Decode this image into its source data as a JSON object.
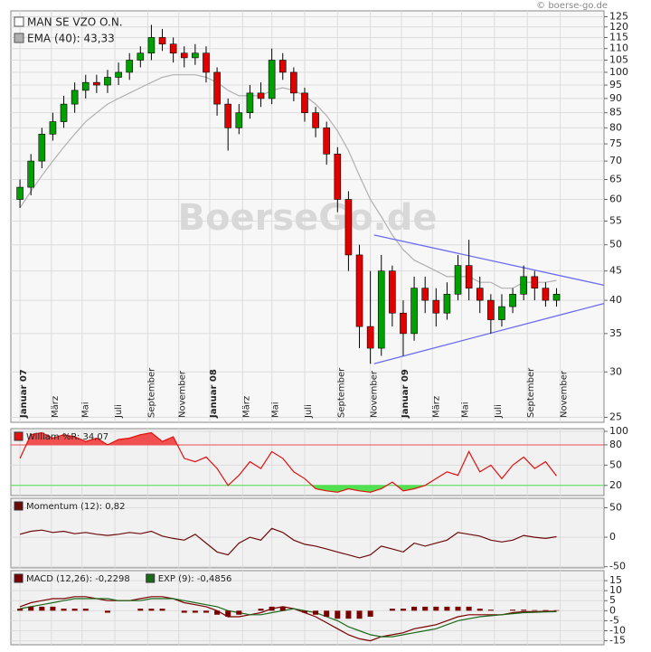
{
  "chart_data": [
    {
      "type": "candlestick",
      "name": "MAN SE VZO O.N.",
      "watermark": "BoerseGo.de",
      "copyright": "© boerse-go.de",
      "log": true,
      "up_color": "#00a000",
      "down_color": "#e00000",
      "legend_color": "#ffffff",
      "x": [
        0,
        3,
        6,
        9,
        12,
        15,
        18,
        21,
        24,
        27,
        30,
        33,
        36,
        39,
        42,
        45,
        48,
        51,
        54,
        57,
        60,
        63,
        66,
        69,
        72,
        75,
        78,
        81,
        84,
        87,
        90,
        93,
        96,
        99,
        102,
        105,
        108,
        111,
        114,
        117,
        120,
        123,
        126,
        129,
        132,
        135,
        138,
        141,
        144,
        147
      ],
      "open": [
        60,
        63,
        70,
        78,
        82,
        88,
        93,
        96,
        95,
        98,
        100,
        105,
        108,
        115,
        112,
        108,
        106,
        108,
        100,
        88,
        80,
        85,
        92,
        90,
        105,
        100,
        92,
        85,
        80,
        72,
        60,
        48,
        36,
        33,
        45,
        38,
        35,
        42,
        40,
        38,
        41,
        46,
        42,
        40,
        37,
        39,
        41,
        44,
        42,
        40
      ],
      "high": [
        65,
        72,
        80,
        85,
        91,
        96,
        99,
        99,
        101,
        104,
        108,
        111,
        121,
        119,
        115,
        111,
        112,
        111,
        102,
        90,
        88,
        95,
        96,
        110,
        108,
        102,
        94,
        87,
        82,
        74,
        62,
        50,
        45,
        48,
        46,
        40,
        44,
        44,
        42,
        43,
        48,
        51,
        44,
        41,
        41,
        42,
        46,
        45,
        43,
        42
      ],
      "low": [
        58,
        61,
        68,
        76,
        80,
        85,
        90,
        92,
        92,
        95,
        97,
        102,
        105,
        109,
        104,
        102,
        103,
        96,
        84,
        73,
        78,
        83,
        87,
        88,
        97,
        89,
        82,
        77,
        69,
        57,
        45,
        33,
        31,
        32,
        36,
        32,
        34,
        38,
        36,
        37,
        40,
        40,
        38,
        35,
        36,
        38,
        40,
        40,
        39,
        39
      ],
      "close": [
        63,
        70,
        78,
        82,
        88,
        93,
        96,
        95,
        98,
        100,
        105,
        108,
        115,
        112,
        108,
        106,
        108,
        100,
        88,
        80,
        85,
        92,
        90,
        105,
        100,
        92,
        85,
        80,
        72,
        60,
        48,
        36,
        33,
        45,
        38,
        35,
        42,
        40,
        38,
        41,
        46,
        42,
        40,
        37,
        39,
        41,
        44,
        42,
        40,
        41
      ],
      "series": [
        {
          "name": "EMA (40): 43,33",
          "color": "#b0b0b0",
          "values": [
            58,
            62,
            66,
            70,
            74,
            78,
            82,
            85,
            88,
            90,
            92,
            94,
            96,
            98,
            99,
            99,
            99,
            98,
            96,
            93,
            91,
            91,
            91,
            93,
            94,
            93,
            91,
            88,
            84,
            79,
            73,
            66,
            60,
            56,
            52,
            49,
            47,
            46,
            45,
            44,
            44,
            44,
            43,
            43,
            42,
            42,
            43,
            43,
            43,
            43.33
          ]
        }
      ],
      "trendlines": [
        {
          "color": "#6b6bef",
          "x": [
            97,
            160
          ],
          "values": [
            52,
            42.5
          ]
        },
        {
          "color": "#6b6bef",
          "x": [
            97,
            160
          ],
          "values": [
            31,
            39.5
          ]
        }
      ],
      "xlim": [
        -2.5,
        160
      ],
      "ylim": [
        24.5,
        128
      ],
      "yticks": [
        25,
        30,
        35,
        40,
        45,
        50,
        55,
        60,
        65,
        70,
        75,
        80,
        85,
        90,
        95,
        100,
        105,
        110,
        115,
        120,
        125
      ],
      "xticks": [
        {
          "value": 0,
          "label": "Januar 07"
        },
        {
          "value": 8.6,
          "label": "März"
        },
        {
          "value": 17,
          "label": "Mai"
        },
        {
          "value": 26,
          "label": "Juli"
        },
        {
          "value": 35,
          "label": "September"
        },
        {
          "value": 43.5,
          "label": "November"
        },
        {
          "value": 52,
          "label": "Januar 08"
        },
        {
          "value": 61,
          "label": "März"
        },
        {
          "value": 69,
          "label": "Mai"
        },
        {
          "value": 78,
          "label": "Juli"
        },
        {
          "value": 87,
          "label": "September"
        },
        {
          "value": 96,
          "label": "November"
        },
        {
          "value": 104.5,
          "label": "Januar 09"
        },
        {
          "value": 113,
          "label": "März"
        },
        {
          "value": 121,
          "label": "Mai"
        },
        {
          "value": 130,
          "label": "Juli"
        },
        {
          "value": 139,
          "label": "September"
        },
        {
          "value": 148,
          "label": "November"
        }
      ]
    },
    {
      "type": "line",
      "ylim": [
        5,
        104
      ],
      "yticks": [
        20,
        50,
        80,
        100
      ],
      "overbought": 80,
      "oversold": 20,
      "overbought_color": "#f05050",
      "oversold_color": "#50e050",
      "series": [
        {
          "name": "William %R: 34,07",
          "color": "#e01010",
          "values": [
            60,
            95,
            98,
            90,
            95,
            92,
            85,
            90,
            80,
            88,
            90,
            95,
            98,
            85,
            92,
            60,
            55,
            62,
            45,
            20,
            35,
            55,
            45,
            70,
            60,
            40,
            30,
            15,
            12,
            10,
            15,
            12,
            10,
            15,
            25,
            12,
            15,
            20,
            30,
            40,
            35,
            70,
            40,
            50,
            30,
            50,
            62,
            45,
            55,
            34.07
          ]
        }
      ]
    },
    {
      "type": "line",
      "ylim": [
        -52,
        66
      ],
      "yticks": [
        -50,
        0,
        50
      ],
      "series": [
        {
          "name": "Momentum (12): 0,82",
          "color": "#6a0a0a",
          "values": [
            5,
            10,
            12,
            8,
            10,
            6,
            8,
            5,
            3,
            5,
            8,
            6,
            10,
            2,
            -2,
            -5,
            5,
            -10,
            -25,
            -30,
            -10,
            0,
            -5,
            15,
            8,
            -5,
            -12,
            -15,
            -20,
            -25,
            -30,
            -35,
            -30,
            -15,
            -20,
            -25,
            -10,
            -15,
            -10,
            -5,
            8,
            5,
            2,
            -5,
            -8,
            -5,
            3,
            0,
            -2,
            0.82
          ]
        }
      ]
    },
    {
      "type": "line",
      "ylim": [
        -17,
        20
      ],
      "yticks": [
        -15,
        -10,
        -5,
        0,
        5,
        10,
        15
      ],
      "series": [
        {
          "name": "MACD (12,26): -0,2298",
          "color": "#7a0000",
          "values": [
            2,
            4,
            5,
            6,
            6,
            7,
            7,
            6,
            5,
            5,
            5,
            6,
            7,
            7,
            6,
            4,
            3,
            2,
            0,
            -3,
            -3,
            -2,
            -1,
            1,
            2,
            1,
            -1,
            -3,
            -6,
            -9,
            -12,
            -14,
            -15,
            -13,
            -12,
            -11,
            -9,
            -8,
            -7,
            -5,
            -3,
            -2,
            -2,
            -2,
            -2,
            -1,
            -0.5,
            -0.5,
            -0.3,
            -0.2298
          ]
        },
        {
          "name": "EXP (9): -0,4856",
          "color": "#1a6a1a",
          "values": [
            1,
            2,
            3,
            4,
            5,
            6,
            6,
            6,
            6,
            5,
            5,
            5,
            6,
            6,
            6,
            5,
            4,
            3,
            2,
            0,
            -1,
            -2,
            -2,
            -1,
            0,
            1,
            0,
            -1,
            -3,
            -5,
            -8,
            -10,
            -12,
            -13,
            -13,
            -12,
            -11,
            -10,
            -9,
            -7,
            -5,
            -4,
            -3,
            -2.5,
            -2,
            -1.5,
            -1,
            -0.8,
            -0.6,
            -0.4856
          ]
        },
        {
          "kind": "bar",
          "color": "#7a0000",
          "values": [
            1,
            2,
            2,
            2,
            1,
            1,
            1,
            0,
            -1,
            0,
            0,
            1,
            1,
            1,
            0,
            -1,
            -1,
            -1,
            -2,
            -3,
            -2,
            0,
            1,
            2,
            2,
            0,
            -1,
            -2,
            -3,
            -4,
            -4,
            -4,
            -3,
            0,
            1,
            1,
            2,
            2,
            2,
            2,
            2,
            2,
            1,
            0.5,
            0,
            0.5,
            0.5,
            0.3,
            0.3,
            0.2558
          ]
        }
      ]
    }
  ]
}
